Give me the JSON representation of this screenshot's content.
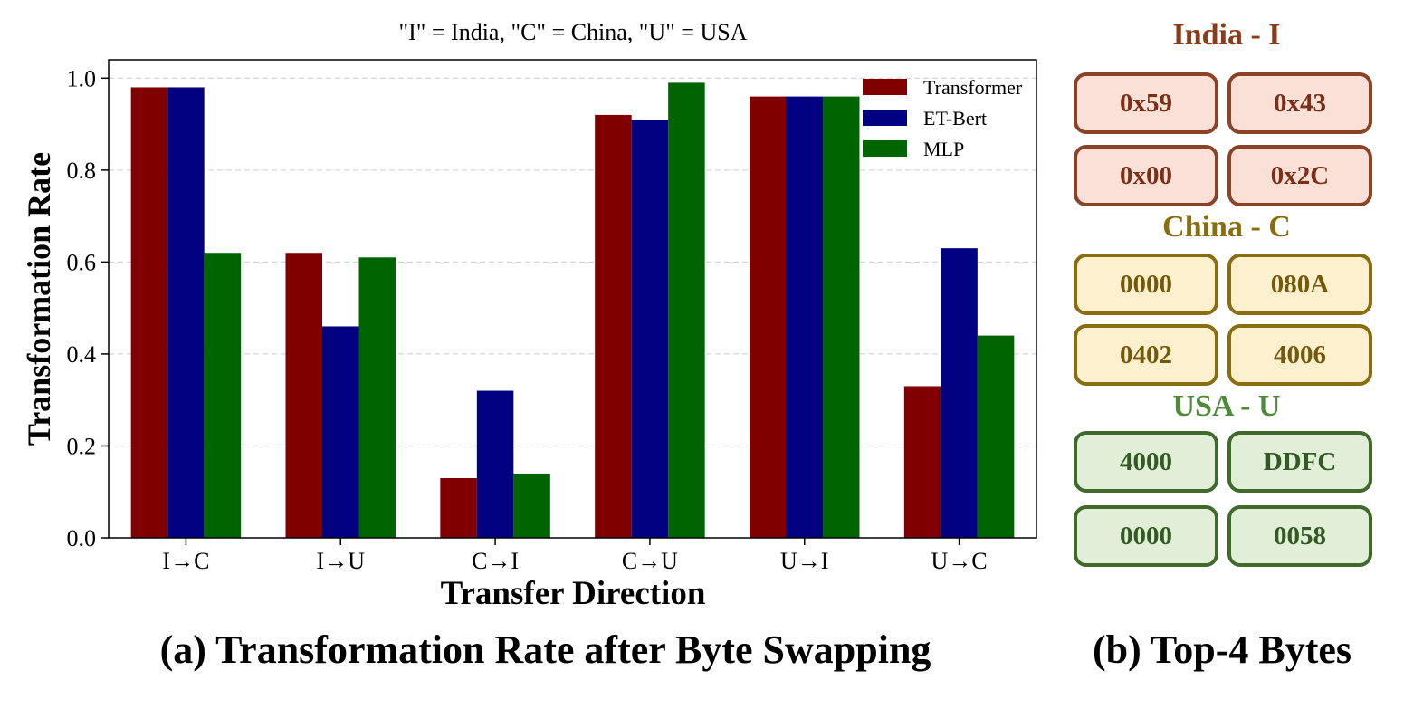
{
  "chart_data": {
    "type": "bar",
    "title": "\"I\" = India, \"C\" = China, \"U\" = USA",
    "xlabel": "Transfer Direction",
    "ylabel": "Transformation Rate",
    "categories": [
      "I→C",
      "I→U",
      "C→I",
      "C→U",
      "U→I",
      "U→C"
    ],
    "series": [
      {
        "name": "Transformer",
        "color": "#800000",
        "values": [
          0.98,
          0.62,
          0.13,
          0.92,
          0.96,
          0.33
        ]
      },
      {
        "name": "ET-Bert",
        "color": "#000080",
        "values": [
          0.98,
          0.46,
          0.32,
          0.91,
          0.96,
          0.63
        ]
      },
      {
        "name": "MLP",
        "color": "#006400",
        "values": [
          0.62,
          0.61,
          0.14,
          0.99,
          0.96,
          0.44
        ]
      }
    ],
    "ylim": [
      0,
      1.04
    ],
    "yticks": [
      "0.0",
      "0.2",
      "0.4",
      "0.6",
      "0.8",
      "1.0"
    ],
    "grid": "y-dashed",
    "legend_position": "top-right"
  },
  "captions": {
    "a": "(a) Transformation Rate after Byte Swapping",
    "b": "(b) Top-4 Bytes"
  },
  "top_bytes": {
    "india": {
      "title": "India - I",
      "bytes": [
        "0x59",
        "0x43",
        "0x00",
        "0x2C"
      ]
    },
    "china": {
      "title": "China - C",
      "bytes": [
        "0000",
        "080A",
        "0402",
        "4006"
      ]
    },
    "usa": {
      "title": "USA - U",
      "bytes": [
        "4000",
        "DDFC",
        "0000",
        "0058"
      ]
    }
  }
}
